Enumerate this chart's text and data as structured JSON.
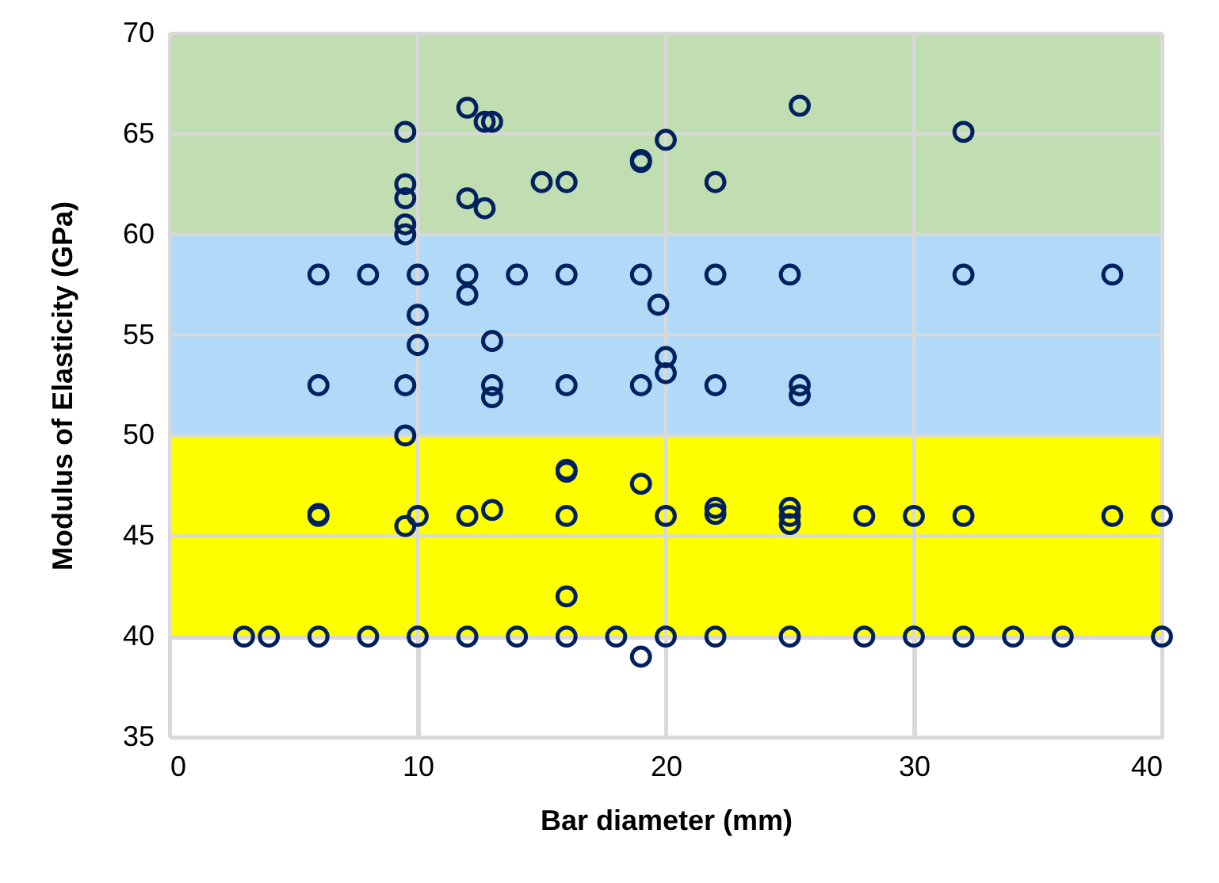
{
  "chart_data": {
    "type": "scatter",
    "xlabel": "Bar diameter (mm)",
    "ylabel": "Modulus of Elasticity (GPa)",
    "xlim": [
      0,
      40
    ],
    "ylim": [
      35,
      70
    ],
    "xticks": [
      0,
      10,
      20,
      30,
      40
    ],
    "yticks": [
      35,
      40,
      45,
      50,
      55,
      60,
      65,
      70
    ],
    "grid": true,
    "marker": "circle",
    "bands": [
      {
        "axis": "y",
        "from": 40,
        "to": 50,
        "color": "#ffff00"
      },
      {
        "axis": "y",
        "from": 50,
        "to": 60,
        "color": "#b0daf8"
      },
      {
        "axis": "y",
        "from": 60,
        "to": 70,
        "color": "#c0deb2"
      }
    ],
    "series": [
      {
        "color": "#002060",
        "x": [
          9.5,
          12,
          12.7,
          13,
          9.5,
          9.5,
          12,
          12.7,
          9.5,
          9.5,
          15,
          16,
          19,
          19,
          20,
          22,
          25.4,
          32,
          6,
          8,
          10,
          12,
          14,
          16,
          19,
          22,
          25,
          32,
          38,
          12,
          19.7,
          10,
          13,
          10,
          20,
          20,
          6,
          9.5,
          13,
          13,
          16,
          19,
          22,
          25.4,
          25.4,
          9.5,
          16,
          16,
          19,
          6,
          6,
          9.5,
          10,
          12,
          13,
          16,
          20,
          22,
          22,
          25,
          25,
          25,
          28,
          30,
          32,
          38,
          40,
          16,
          3,
          4,
          6,
          8,
          10,
          12,
          14,
          16,
          18,
          20,
          22,
          25,
          28,
          30,
          32,
          34,
          36,
          40,
          19
        ],
        "values": [
          65.1,
          66.3,
          65.6,
          65.6,
          62.5,
          61.8,
          61.8,
          61.3,
          60.5,
          60,
          62.6,
          62.6,
          63.7,
          63.6,
          64.7,
          62.6,
          66.4,
          65.1,
          58,
          58,
          58,
          58,
          58,
          58,
          58,
          58,
          58,
          58,
          58,
          57,
          56.5,
          56,
          54.7,
          54.5,
          53.9,
          53.1,
          52.5,
          52.5,
          52.5,
          51.9,
          52.5,
          52.5,
          52.5,
          52.5,
          52,
          50,
          48.3,
          48.2,
          47.6,
          46.1,
          46,
          45.5,
          46,
          46,
          46.3,
          46,
          46,
          46.4,
          46.1,
          46.4,
          46,
          45.6,
          46,
          46,
          46,
          46,
          46,
          42,
          40,
          40,
          40,
          40,
          40,
          40,
          40,
          40,
          40,
          40,
          40,
          40,
          40,
          40,
          40,
          40,
          40,
          40,
          39
        ]
      }
    ]
  }
}
